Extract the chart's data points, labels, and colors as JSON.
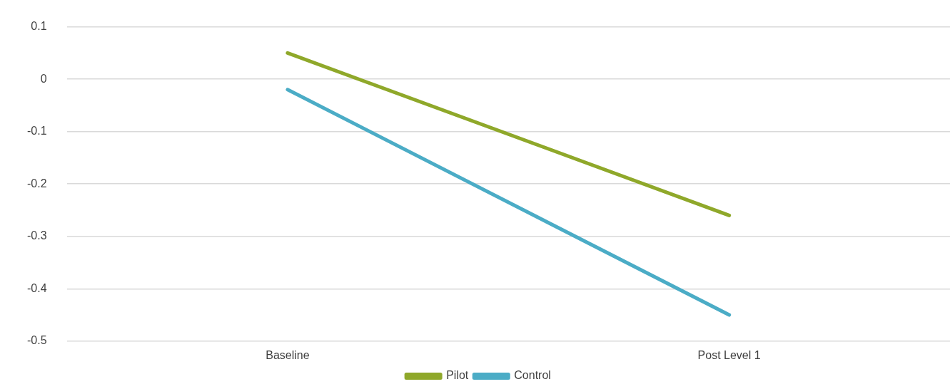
{
  "chart_data": {
    "type": "line",
    "categories": [
      "Baseline",
      "Post Level 1"
    ],
    "series": [
      {
        "name": "Pilot",
        "color": "#8fa82a",
        "values": [
          0.05,
          -0.26
        ]
      },
      {
        "name": "Control",
        "color": "#4bacc6",
        "values": [
          -0.02,
          -0.45
        ]
      }
    ],
    "ylim": [
      -0.5,
      0.1
    ],
    "yticks": [
      -0.5,
      -0.4,
      -0.3,
      -0.2,
      -0.1,
      0,
      0.1
    ],
    "grid": "y",
    "legend": "bottom",
    "marker": "none",
    "line_style": "solid"
  }
}
